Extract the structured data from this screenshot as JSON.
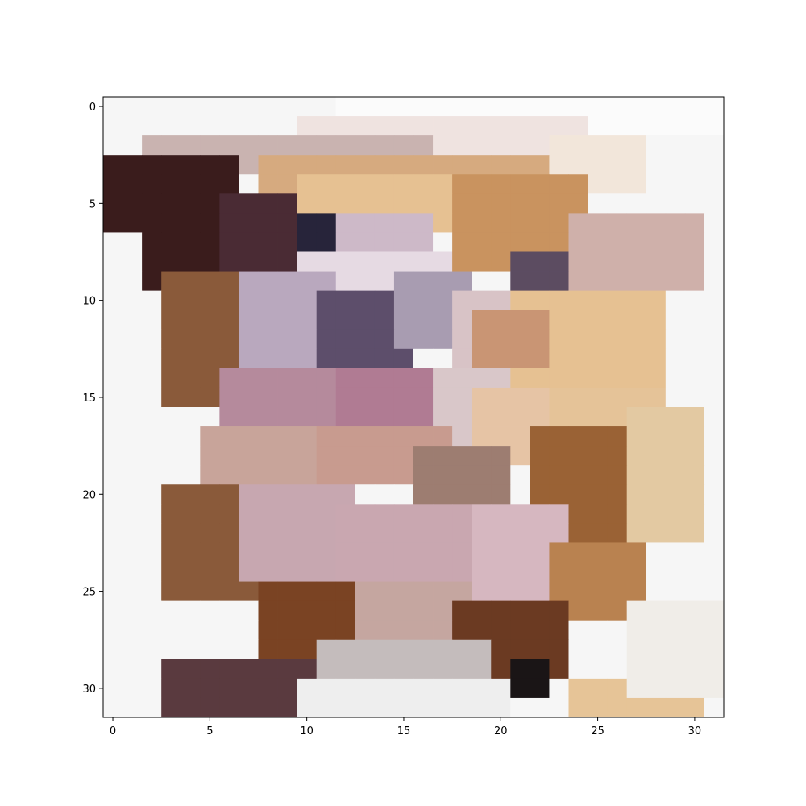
{
  "chart_data": {
    "type": "heatmap",
    "title": "",
    "xlabel": "",
    "ylabel": "",
    "grid": false,
    "xlim": [
      -0.5,
      31.5
    ],
    "ylim": [
      31.5,
      -0.5
    ],
    "x_ticks": [
      0,
      5,
      10,
      15,
      20,
      25,
      30
    ],
    "y_ticks": [
      0,
      5,
      10,
      15,
      20,
      25,
      30
    ],
    "x_tick_labels": [
      "0",
      "5",
      "10",
      "15",
      "20",
      "25",
      "30"
    ],
    "y_tick_labels": [
      "0",
      "5",
      "10",
      "15",
      "20",
      "25",
      "30"
    ],
    "image_size": [
      32,
      32
    ],
    "description": "Pixelated 32x32 photo; colors below are sampled per region.",
    "palette": {
      "white": "#f6f6f6",
      "cream": "#f2e6da",
      "tan": "#d6aa7f",
      "gold": "#e6c192",
      "brown": "#8a5a3a",
      "dark_brown": "#3a1c1c",
      "navy": "#27243a",
      "lavender": "#b9a8be",
      "slate": "#5d4e6b",
      "mauve": "#b58a9c",
      "pink_tan": "#c8a49a",
      "rose": "#c7a7b0",
      "dusty_rose": "#d6b7c0",
      "rust": "#9a6235",
      "caramel": "#b98250",
      "greige": "#c4bcbc",
      "black": "#1a1516"
    }
  }
}
